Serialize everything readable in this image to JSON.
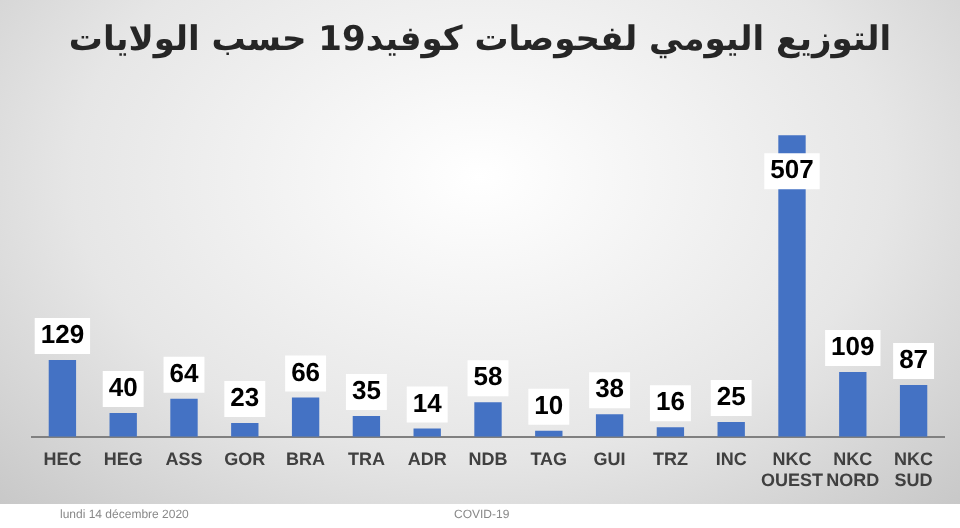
{
  "chart_data": {
    "type": "bar",
    "title": "التوزيع اليومي لفحوصات كوفيد19 حسب الولايات",
    "categories": [
      "HEC",
      "HEG",
      "ASS",
      "GOR",
      "BRA",
      "TRA",
      "ADR",
      "NDB",
      "TAG",
      "GUI",
      "TRZ",
      "INC",
      "NKC OUEST",
      "NKC NORD",
      "NKC SUD"
    ],
    "values": [
      129,
      40,
      64,
      23,
      66,
      35,
      14,
      58,
      10,
      38,
      16,
      25,
      507,
      109,
      87
    ],
    "color": "#4472c4",
    "relative": false,
    "data_labels": true,
    "grid": false,
    "legend": false,
    "annotations": [
      "lundi 14 décembre 2020",
      "COVID-19"
    ]
  }
}
